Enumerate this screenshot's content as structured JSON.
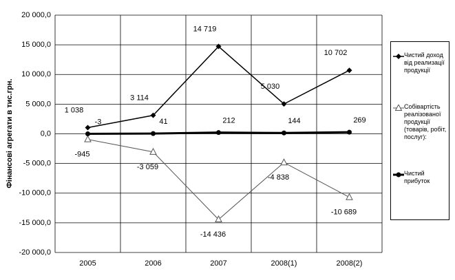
{
  "chart_data": {
    "type": "line",
    "y_label": "Фінансові агрегати в тис.грн.",
    "categories": [
      "2005",
      "2006",
      "2007",
      "2008(1)",
      "2008(2)"
    ],
    "series": [
      {
        "name": "Чистий доход від реализації продукції",
        "color": "#000000",
        "marker": "diamond",
        "line_width": 1.5,
        "values": [
          1038,
          3114,
          14719,
          5030,
          10702
        ],
        "value_labels": [
          "1 038",
          "3 114",
          "14 719",
          "5 030",
          "10 702"
        ]
      },
      {
        "name": "Собівартість реалізованої продукції (товарів, робіт, послуг):",
        "color": "#555555",
        "marker": "triangle",
        "line_width": 1,
        "values": [
          -945,
          -3059,
          -14436,
          -4838,
          -10689
        ],
        "value_labels": [
          "-945",
          "-3 059",
          "-14 436",
          "-4 838",
          "-10 689"
        ]
      },
      {
        "name": "Чистий прибуток",
        "color": "#000000",
        "marker": "circle",
        "line_width": 3,
        "values": [
          -3,
          41,
          212,
          144,
          269
        ]
      }
    ],
    "ylim": [
      -20000,
      20000
    ],
    "yticks": [
      {
        "value": -20000,
        "label": "-20 000,0"
      },
      {
        "value": -15000,
        "label": "-15 000,0"
      },
      {
        "value": -10000,
        "label": "-10 000,0"
      },
      {
        "value": -5000,
        "label": "-5 000,0"
      },
      {
        "value": 0,
        "label": "0,0"
      },
      {
        "value": 5000,
        "label": "5 000,0"
      },
      {
        "value": 10000,
        "label": "10 000,0"
      },
      {
        "value": 15000,
        "label": "15 000,0"
      },
      {
        "value": 20000,
        "label": "20 000,0"
      }
    ],
    "grid": true
  }
}
